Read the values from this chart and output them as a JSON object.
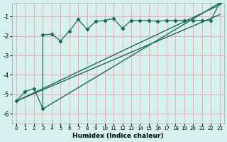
{
  "xlabel": "Humidex (Indice chaleur)",
  "bg_color": "#d6f0ef",
  "grid_color": "#f0b0b0",
  "line_color": "#1a6b5a",
  "xlim": [
    -0.5,
    23.5
  ],
  "ylim": [
    -6.5,
    -0.3
  ],
  "yticks": [
    -6,
    -5,
    -4,
    -3,
    -2,
    -1
  ],
  "xticks": [
    0,
    1,
    2,
    3,
    4,
    5,
    6,
    7,
    8,
    9,
    10,
    11,
    12,
    13,
    14,
    15,
    16,
    17,
    18,
    19,
    20,
    21,
    22,
    23
  ],
  "jagged_x": [
    0,
    1,
    2,
    3,
    3,
    4,
    5,
    6,
    7,
    8,
    9,
    10,
    11,
    12,
    13,
    14,
    15,
    16,
    17,
    18,
    19,
    20,
    21,
    22,
    23
  ],
  "jagged_y": [
    -5.35,
    -4.85,
    -4.7,
    -5.75,
    -1.95,
    -1.9,
    -2.25,
    -1.75,
    -1.15,
    -1.65,
    -1.25,
    -1.2,
    -1.1,
    -1.6,
    -1.2,
    -1.2,
    -1.2,
    -1.25,
    -1.2,
    -1.2,
    -1.2,
    -1.2,
    -1.2,
    -1.2,
    -0.3
  ],
  "line1_x": [
    3,
    23
  ],
  "line1_y": [
    -5.75,
    -0.3
  ],
  "line2_x": [
    0,
    23
  ],
  "line2_y": [
    -5.35,
    -0.4
  ],
  "line3_x": [
    0,
    23
  ],
  "line3_y": [
    -5.35,
    -0.9
  ]
}
